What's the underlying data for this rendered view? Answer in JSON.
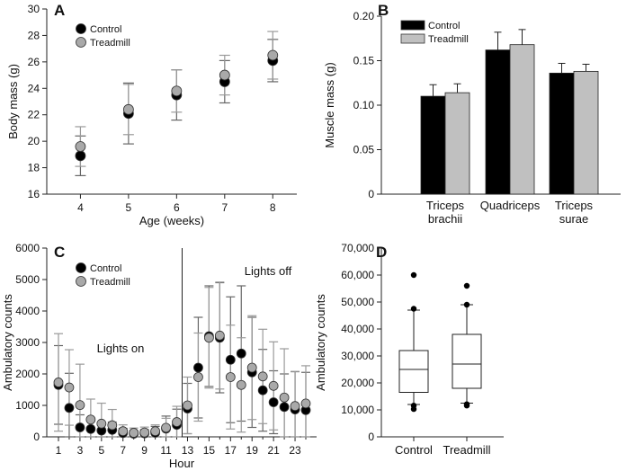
{
  "colors": {
    "control": "#000000",
    "treadmill": "#a9a9a9",
    "treadmill_bar": "#c0c0c0",
    "axis": "#222222",
    "error": "#9a9a9a"
  },
  "chart_data": [
    {
      "panel": "A",
      "type": "scatter",
      "xlabel": "Age (weeks)",
      "ylabel": "Body mass (g)",
      "x": [
        4,
        5,
        6,
        7,
        8
      ],
      "xticks": [
        "4",
        "5",
        "6",
        "7",
        "8"
      ],
      "ylim": [
        16,
        30
      ],
      "yticks": [
        "16",
        "18",
        "20",
        "22",
        "24",
        "26",
        "28",
        "30"
      ],
      "legend": "top-left",
      "series": [
        {
          "name": "Control",
          "values": [
            18.9,
            22.1,
            23.5,
            24.5,
            26.1
          ],
          "errors": [
            1.5,
            2.3,
            1.9,
            1.6,
            1.6
          ]
        },
        {
          "name": "Treadmill",
          "values": [
            19.6,
            22.4,
            23.8,
            25.0,
            26.5
          ],
          "errors": [
            1.5,
            1.9,
            1.6,
            1.5,
            1.8
          ]
        }
      ]
    },
    {
      "panel": "B",
      "type": "bar",
      "ylabel": "Muscle mass (g)",
      "categories": [
        [
          "Triceps",
          "brachii"
        ],
        [
          "Quadriceps"
        ],
        [
          "Triceps",
          "surae"
        ]
      ],
      "ylim": [
        0,
        0.2
      ],
      "yticks": [
        "0",
        "0.05",
        "0.10",
        "0.15",
        "0.20"
      ],
      "legend": "top-left",
      "series": [
        {
          "name": "Control",
          "values": [
            0.11,
            0.162,
            0.136
          ],
          "errors": [
            0.013,
            0.02,
            0.011
          ]
        },
        {
          "name": "Treadmill",
          "values": [
            0.114,
            0.168,
            0.138
          ],
          "errors": [
            0.01,
            0.017,
            0.008
          ]
        }
      ]
    },
    {
      "panel": "C",
      "type": "scatter",
      "xlabel": "Hour",
      "ylabel": "Ambulatory counts",
      "x": [
        1,
        2,
        3,
        4,
        5,
        6,
        7,
        8,
        9,
        10,
        11,
        12,
        13,
        14,
        15,
        16,
        17,
        18,
        19,
        20,
        21,
        22,
        23,
        24
      ],
      "xticks": [
        "1",
        "3",
        "5",
        "7",
        "9",
        "11",
        "13",
        "15",
        "17",
        "19",
        "21",
        "23"
      ],
      "ylim": [
        0,
        6000
      ],
      "yticks": [
        "0",
        "1000",
        "2000",
        "3000",
        "4000",
        "5000",
        "6000"
      ],
      "legend": "top-left",
      "annotations": [
        "Lights on",
        "Lights off"
      ],
      "divider_hour": 12.5,
      "series": [
        {
          "name": "Control",
          "values": [
            1650,
            920,
            300,
            250,
            200,
            220,
            120,
            100,
            110,
            130,
            260,
            380,
            900,
            2200,
            3200,
            3150,
            2450,
            2650,
            2050,
            1480,
            1100,
            950,
            870,
            850
          ],
          "errors": [
            1250,
            1100,
            400,
            300,
            250,
            250,
            150,
            100,
            120,
            200,
            400,
            500,
            800,
            1600,
            1600,
            1750,
            2000,
            2150,
            1750,
            1300,
            1000,
            1050,
            1200,
            1200
          ]
        },
        {
          "name": "Treadmill",
          "values": [
            1730,
            1570,
            1010,
            550,
            420,
            370,
            180,
            130,
            140,
            180,
            290,
            470,
            1000,
            1900,
            3150,
            3220,
            1900,
            1650,
            2200,
            1920,
            1620,
            1250,
            980,
            1060
          ],
          "errors": [
            1550,
            1200,
            1300,
            650,
            650,
            500,
            200,
            150,
            170,
            200,
            300,
            500,
            900,
            1400,
            1600,
            1700,
            1650,
            1500,
            1650,
            1500,
            1400,
            1550,
            1100,
            1200
          ]
        }
      ]
    },
    {
      "panel": "D",
      "type": "box",
      "ylabel": "Ambulatory counts",
      "categories": [
        "Control",
        "Treadmill"
      ],
      "ylim": [
        0,
        70000
      ],
      "yticks": [
        "0",
        "10,000",
        "20,000",
        "30,000",
        "40,000",
        "50,000",
        "60,000",
        "70,000"
      ],
      "boxes": [
        {
          "whisker_low": 12000,
          "q1": 16500,
          "median": 25000,
          "q3": 32000,
          "whisker_high": 47000,
          "outliers": [
            10300,
            11600,
            47500,
            60000
          ]
        },
        {
          "whisker_low": 12500,
          "q1": 18000,
          "median": 27000,
          "q3": 38000,
          "whisker_high": 49000,
          "outliers": [
            11600,
            12100,
            49000,
            56000
          ]
        }
      ]
    }
  ]
}
